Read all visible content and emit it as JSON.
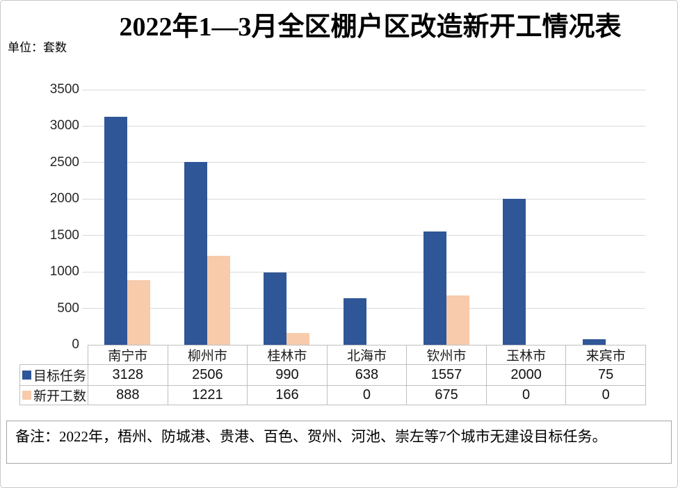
{
  "title": "2022年1—3月全区棚户区改造新开工情况表",
  "unit_label": "单位：套数",
  "note": "备注：2022年，梧州、防城港、贵港、百色、贺州、河池、崇左等7个城市无建设目标任务。",
  "colors": {
    "target_series": "#2F5697",
    "started_series": "#F7CBAC",
    "gridline": "#D9D9D9",
    "table_border": "#BFBFBF",
    "note_border": "#A6A6A6"
  },
  "chart_data": {
    "type": "bar",
    "title": "2022年1—3月全区棚户区改造新开工情况表",
    "xlabel": "",
    "ylabel": "单位：套数",
    "categories": [
      "南宁市",
      "柳州市",
      "桂林市",
      "北海市",
      "钦州市",
      "玉林市",
      "来宾市"
    ],
    "series": [
      {
        "name": "目标任务",
        "key": "target",
        "color": "#2F5697",
        "values": [
          3128,
          2506,
          990,
          638,
          1557,
          2000,
          75
        ]
      },
      {
        "name": "新开工数",
        "key": "started",
        "color": "#F7CBAC",
        "values": [
          888,
          1221,
          166,
          0,
          675,
          0,
          0
        ]
      }
    ],
    "ylim": [
      0,
      3500
    ],
    "ytick_step": 500,
    "yticks": [
      0,
      500,
      1000,
      1500,
      2000,
      2500,
      3000,
      3500
    ],
    "grid": true,
    "legend_position": "table-rows-left",
    "data_table_shown": true
  }
}
